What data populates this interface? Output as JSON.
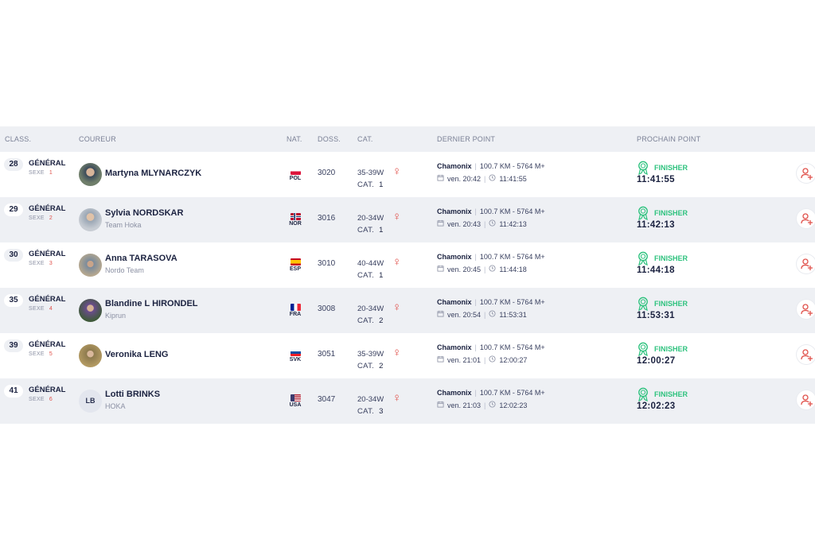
{
  "headers": {
    "class": "CLASS.",
    "coureur": "COUREUR",
    "nat": "NAT.",
    "doss": "DOSS.",
    "cat": "CAT.",
    "dernier": "DERNIER POINT",
    "prochain": "PROCHAIN POINT"
  },
  "labels": {
    "general": "GÉNÉRAL",
    "sexe": "SEXE",
    "cat": "CAT.",
    "finisher": "FINISHER",
    "female_symbol": "♀"
  },
  "rows": [
    {
      "rank": "28",
      "sexe": "1",
      "cat_rank": "1",
      "name": "Martyna MLYNARCZYK",
      "team": "",
      "nat": "POL",
      "doss": "3020",
      "category": "35-39W",
      "place": "Chamonix",
      "dist": "100.7 KM - 5764 M+",
      "day": "ven. 20:42",
      "elapsed": "11:41:55",
      "finish": "11:41:55",
      "avatar": ""
    },
    {
      "rank": "29",
      "sexe": "2",
      "cat_rank": "1",
      "name": "Sylvia NORDSKAR",
      "team": "Team Hoka",
      "nat": "NOR",
      "doss": "3016",
      "category": "20-34W",
      "place": "Chamonix",
      "dist": "100.7 KM - 5764 M+",
      "day": "ven. 20:43",
      "elapsed": "11:42:13",
      "finish": "11:42:13",
      "avatar": ""
    },
    {
      "rank": "30",
      "sexe": "3",
      "cat_rank": "1",
      "name": "Anna TARASOVA",
      "team": "Nordo Team",
      "nat": "ESP",
      "doss": "3010",
      "category": "40-44W",
      "place": "Chamonix",
      "dist": "100.7 KM - 5764 M+",
      "day": "ven. 20:45",
      "elapsed": "11:44:18",
      "finish": "11:44:18",
      "avatar": ""
    },
    {
      "rank": "35",
      "sexe": "4",
      "cat_rank": "2",
      "name": "Blandine L HIRONDEL",
      "team": "Kiprun",
      "nat": "FRA",
      "doss": "3008",
      "category": "20-34W",
      "place": "Chamonix",
      "dist": "100.7 KM - 5764 M+",
      "day": "ven. 20:54",
      "elapsed": "11:53:31",
      "finish": "11:53:31",
      "avatar": ""
    },
    {
      "rank": "39",
      "sexe": "5",
      "cat_rank": "2",
      "name": "Veronika LENG",
      "team": "",
      "nat": "SVK",
      "doss": "3051",
      "category": "35-39W",
      "place": "Chamonix",
      "dist": "100.7 KM - 5764 M+",
      "day": "ven. 21:01",
      "elapsed": "12:00:27",
      "finish": "12:00:27",
      "avatar": ""
    },
    {
      "rank": "41",
      "sexe": "6",
      "cat_rank": "3",
      "name": "Lotti BRINKS",
      "team": "HOKA",
      "nat": "USA",
      "doss": "3047",
      "category": "20-34W",
      "place": "Chamonix",
      "dist": "100.7 KM - 5764 M+",
      "day": "ven. 21:03",
      "elapsed": "12:02:23",
      "finish": "12:02:23",
      "avatar": "LB"
    }
  ],
  "colors": {
    "accent_green": "#2ec27e",
    "female_red": "#e0504a",
    "row_alt": "#eef0f4"
  },
  "icons": {
    "medal": "medal-icon",
    "follow": "add-user-icon",
    "calendar": "calendar-icon",
    "clock": "clock-icon"
  }
}
